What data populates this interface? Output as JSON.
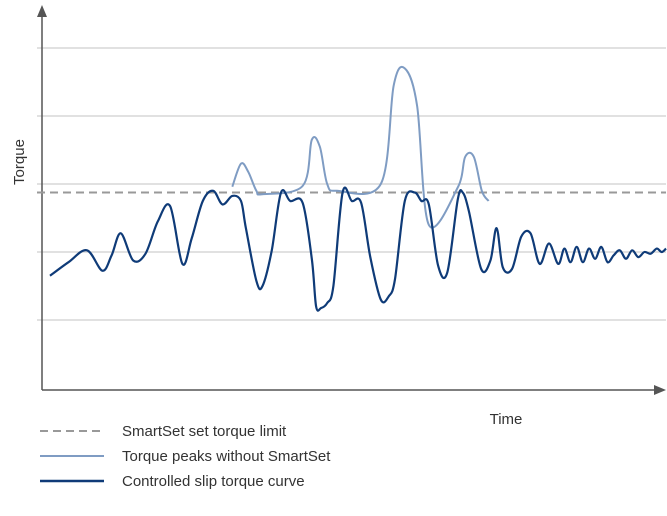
{
  "chart_data": {
    "type": "line",
    "xlabel": "Time",
    "ylabel": "Torque",
    "grid": true,
    "y_tick_labels_shown": false,
    "x_tick_labels_shown": false,
    "xlim": [
      0,
      100
    ],
    "ylim": [
      0,
      100
    ],
    "set_limit": 57.5,
    "legend_position": "bottom-left",
    "series": [
      {
        "name": "SmartSet set torque limit",
        "style": "dashed",
        "color": "#999999",
        "x": [
          0,
          100
        ],
        "y": [
          57.5,
          57.5
        ]
      },
      {
        "name": "Torque peaks without SmartSet",
        "style": "solid",
        "color": "#7f9cc3",
        "x": [
          29.6,
          31.0,
          32.2,
          33.5,
          34.5,
          41.0,
          42.5,
          43.8,
          45.0,
          46.6,
          53.7,
          55.8,
          57.6,
          59.6,
          61.5,
          66.2,
          67.4,
          68.8,
          70.1,
          71.2
        ],
        "y": [
          59.2,
          66.0,
          63.5,
          58.0,
          57.0,
          59.4,
          73.0,
          71.0,
          60.0,
          58.0,
          60.0,
          89.0,
          94.0,
          83.0,
          48.0,
          59.0,
          68.0,
          68.0,
          58.0,
          55.0
        ]
      },
      {
        "name": "Controlled slip torque curve",
        "style": "solid",
        "color": "#0f3b78",
        "x": [
          0,
          3.0,
          6.0,
          8.5,
          10.0,
          11.5,
          13.5,
          15.5,
          17.5,
          19.5,
          21.5,
          23.0,
          24.8,
          26.5,
          28.0,
          29.6,
          31.0,
          31.8,
          33.5,
          34.5,
          36.0,
          37.5,
          39.0,
          41.0,
          42.5,
          43.2,
          44.0,
          45.0,
          46.0,
          47.5,
          49.0,
          50.5,
          52.0,
          53.7,
          55.0,
          56.0,
          57.6,
          59.2,
          60.3,
          61.5,
          63.0,
          64.5,
          66.2,
          67.0,
          68.0,
          70.0,
          71.5,
          72.5,
          73.5,
          75.0,
          76.5,
          78.0,
          79.5,
          81.0,
          82.5,
          83.5,
          84.5,
          85.5,
          86.5,
          87.5,
          88.5,
          89.5,
          90.5,
          91.5,
          92.5,
          93.5,
          94.5,
          95.5,
          96.5,
          97.5,
          98.5,
          99.3,
          100
        ],
        "y": [
          33.0,
          37.0,
          40.5,
          34.5,
          39.0,
          45.5,
          37.5,
          39.5,
          49.0,
          53.5,
          36.5,
          44.0,
          55.0,
          58.0,
          54.0,
          56.5,
          55.0,
          47.0,
          31.5,
          30.0,
          40.5,
          57.5,
          55.0,
          54.5,
          38.0,
          24.0,
          23.5,
          25.0,
          30.0,
          57.5,
          55.0,
          54.5,
          38.5,
          26.0,
          27.0,
          32.0,
          55.0,
          57.5,
          55.0,
          54.0,
          36.0,
          34.0,
          55.5,
          57.5,
          52.0,
          35.0,
          37.5,
          47.0,
          35.5,
          35.0,
          44.5,
          45.5,
          36.5,
          42.5,
          36.5,
          41.0,
          37.0,
          41.5,
          37.0,
          41.0,
          38.0,
          41.5,
          37.0,
          39.0,
          40.5,
          38.0,
          40.5,
          38.5,
          40.0,
          39.5,
          41.0,
          40.0,
          41.0
        ]
      }
    ]
  }
}
